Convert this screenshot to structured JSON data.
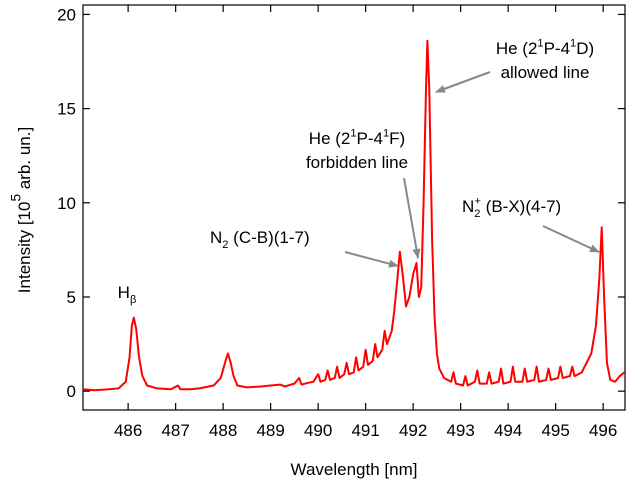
{
  "chart_data": {
    "type": "line",
    "x_label": [
      "Wavelength [nm]"
    ],
    "y_label": [
      "Intensity [10",
      "5",
      " arb. un.]"
    ],
    "xlim": [
      485.05,
      496.46
    ],
    "ylim": [
      -1,
      20.5
    ],
    "xticks": [
      486,
      487,
      488,
      489,
      490,
      491,
      492,
      493,
      494,
      495,
      496
    ],
    "yticks": [
      0,
      5,
      10,
      15,
      20
    ],
    "color": "#ff0000",
    "x": [
      485.05,
      485.3,
      485.6,
      485.8,
      485.95,
      486.03,
      486.08,
      486.12,
      486.17,
      486.23,
      486.3,
      486.4,
      486.6,
      486.9,
      487.05,
      487.1,
      487.3,
      487.5,
      487.8,
      487.95,
      488.05,
      488.1,
      488.15,
      488.22,
      488.3,
      488.5,
      488.8,
      489.0,
      489.2,
      489.3,
      489.5,
      489.6,
      489.65,
      489.8,
      489.9,
      490.0,
      490.05,
      490.15,
      490.2,
      490.25,
      490.35,
      490.4,
      490.45,
      490.55,
      490.6,
      490.65,
      490.75,
      490.8,
      490.85,
      490.95,
      491.0,
      491.05,
      491.15,
      491.2,
      491.25,
      491.35,
      491.4,
      491.45,
      491.55,
      491.6,
      491.67,
      491.72,
      491.78,
      491.85,
      491.92,
      492.0,
      492.07,
      492.12,
      492.17,
      492.22,
      492.27,
      492.3,
      492.34,
      492.4,
      492.45,
      492.5,
      492.55,
      492.65,
      492.8,
      492.85,
      492.9,
      493.05,
      493.1,
      493.15,
      493.3,
      493.35,
      493.4,
      493.55,
      493.6,
      493.65,
      493.8,
      493.85,
      493.9,
      494.05,
      494.1,
      494.15,
      494.3,
      494.35,
      494.4,
      494.55,
      494.6,
      494.65,
      494.8,
      494.85,
      494.9,
      495.05,
      495.1,
      495.15,
      495.3,
      495.35,
      495.4,
      495.55,
      495.65,
      495.75,
      495.85,
      495.92,
      495.97,
      496.02,
      496.08,
      496.15,
      496.25,
      496.35,
      496.45
    ],
    "values": [
      0.1,
      0.05,
      0.1,
      0.15,
      0.5,
      1.8,
      3.5,
      3.9,
      3.3,
      1.8,
      0.8,
      0.3,
      0.15,
      0.1,
      0.3,
      0.1,
      0.1,
      0.15,
      0.3,
      0.7,
      1.6,
      2.0,
      1.6,
      0.8,
      0.3,
      0.2,
      0.25,
      0.3,
      0.35,
      0.25,
      0.4,
      0.7,
      0.35,
      0.45,
      0.5,
      0.9,
      0.5,
      0.6,
      1.1,
      0.6,
      0.7,
      1.3,
      0.7,
      0.9,
      1.5,
      0.9,
      1.0,
      1.8,
      1.1,
      1.3,
      2.2,
      1.4,
      1.6,
      2.5,
      1.8,
      2.2,
      3.2,
      2.5,
      3.2,
      4.2,
      6.0,
      7.4,
      6.2,
      4.5,
      5.0,
      6.2,
      6.8,
      5.0,
      5.5,
      10,
      16,
      18.6,
      16,
      8,
      4,
      2.0,
      1.2,
      0.7,
      0.5,
      1.0,
      0.4,
      0.3,
      0.8,
      0.3,
      0.5,
      1.1,
      0.4,
      0.4,
      1.0,
      0.4,
      0.5,
      1.2,
      0.4,
      0.5,
      1.3,
      0.5,
      0.5,
      1.2,
      0.5,
      0.6,
      1.3,
      0.5,
      0.6,
      1.2,
      0.6,
      0.7,
      1.3,
      0.7,
      0.8,
      1.3,
      0.8,
      1.0,
      1.5,
      2.0,
      3.5,
      6.0,
      8.7,
      5.0,
      1.5,
      0.6,
      0.5,
      0.8,
      1.0
    ],
    "annotations": [
      [
        [
          "H",
          "β"
        ]
      ],
      [
        [
          "N",
          "2",
          " (C-B)(1-7)"
        ]
      ],
      [
        [
          "He (2",
          "1",
          "P-4",
          "1",
          "F)"
        ],
        [
          "forbidden line"
        ]
      ],
      [
        [
          "He (2",
          "1",
          "P-4",
          "1",
          "D)"
        ],
        [
          "allowed line"
        ]
      ],
      [
        [
          "N",
          "2",
          "+",
          " (B-X)(4-7)"
        ]
      ]
    ]
  }
}
